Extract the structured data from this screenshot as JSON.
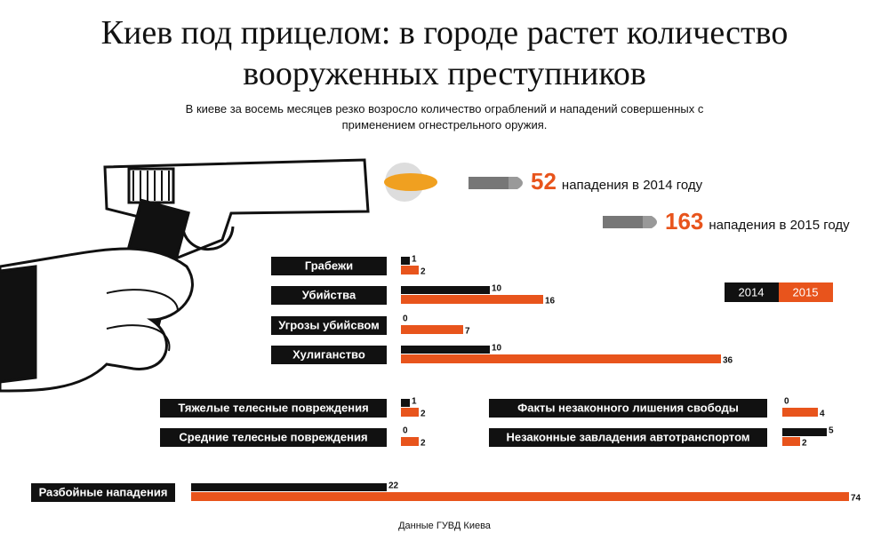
{
  "chart_data": {
    "type": "bar",
    "orientation": "horizontal",
    "title": "Киев под прицелом: в городе растет количество вооруженных преступников",
    "subtitle": "В киеве за восемь месяцев резко возросло количество ограблений и нападений совершенных с применением огнестрельного оружия.",
    "callouts": [
      {
        "value": 52,
        "text": "нападения в 2014 году",
        "color": "#e8541c"
      },
      {
        "value": 163,
        "text": "нападения в 2015 году",
        "color": "#e8541c"
      }
    ],
    "categories": [
      "Грабежи",
      "Убийства",
      "Угрозы убийсвом",
      "Хулиганство",
      "Тяжелые телесные повреждения",
      "Средние телесные повреждения",
      "Факты незаконного лишения свободы",
      "Незаконные завладения автотранспортом",
      "Разбойные нападения"
    ],
    "series": [
      {
        "name": "2014",
        "color": "#111111",
        "values": [
          1,
          10,
          0,
          10,
          1,
          0,
          0,
          5,
          22
        ]
      },
      {
        "name": "2015",
        "color": "#e8541c",
        "values": [
          2,
          16,
          7,
          36,
          2,
          2,
          4,
          2,
          74
        ]
      }
    ],
    "source": "Данные ГУВД Киева"
  }
}
